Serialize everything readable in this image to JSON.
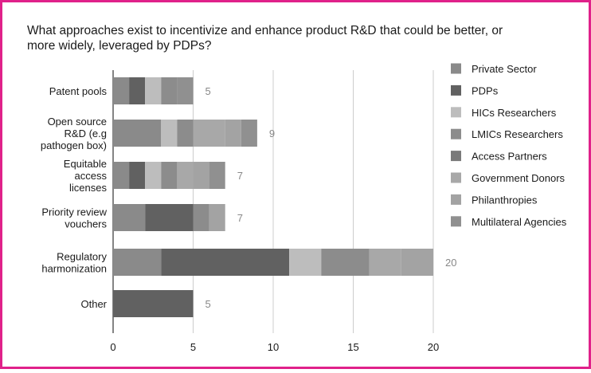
{
  "border_color": "#e0218a",
  "chart_data": {
    "type": "bar",
    "orientation": "horizontal",
    "stacked": true,
    "title": "What approaches exist to incentivize and enhance product R&D that could be better, or more widely, leveraged by PDPs?",
    "title_lines": [
      "What approaches exist to incentivize and enhance product R&D that could be better, or",
      "more widely, leveraged by PDPs?"
    ],
    "categories": [
      [
        "Patent pools"
      ],
      [
        "Open source",
        "R&D (e.g",
        "pathogen box)"
      ],
      [
        "Equitable",
        "access",
        "licenses"
      ],
      [
        "Priority review",
        "vouchers"
      ],
      [
        "Regulatory",
        "harmonization"
      ],
      [
        "Other"
      ]
    ],
    "xlim": [
      0,
      20
    ],
    "xticks": [
      "0",
      "5",
      "10",
      "15",
      "20"
    ],
    "grid": true,
    "legend_position": "right",
    "series": [
      {
        "name": "Private Sector",
        "color": "#8a8a8a",
        "values": [
          1,
          3,
          1,
          2,
          3,
          0
        ]
      },
      {
        "name": "PDPs",
        "color": "#616161",
        "values": [
          1,
          0,
          1,
          3,
          8,
          5
        ]
      },
      {
        "name": "HICs Researchers",
        "color": "#bdbdbd",
        "values": [
          1,
          1,
          1,
          0,
          2,
          0
        ]
      },
      {
        "name": "LMICs Researchers",
        "color": "#8c8c8c",
        "values": [
          1,
          1,
          1,
          1,
          3,
          0
        ]
      },
      {
        "name": "Access Partners",
        "color": "#7a7a7a",
        "values": [
          0,
          0,
          0,
          0,
          0,
          0
        ]
      },
      {
        "name": "Government Donors",
        "color": "#a8a8a8",
        "values": [
          0,
          2,
          1,
          0,
          2,
          0
        ]
      },
      {
        "name": "Philanthropies",
        "color": "#a3a3a3",
        "values": [
          0,
          1,
          1,
          1,
          2,
          0
        ]
      },
      {
        "name": "Multilateral Agencies",
        "color": "#909090",
        "values": [
          1,
          1,
          1,
          0,
          0,
          0
        ]
      }
    ],
    "totals": [
      "5",
      "9",
      "7",
      "7",
      "20",
      "5"
    ]
  }
}
